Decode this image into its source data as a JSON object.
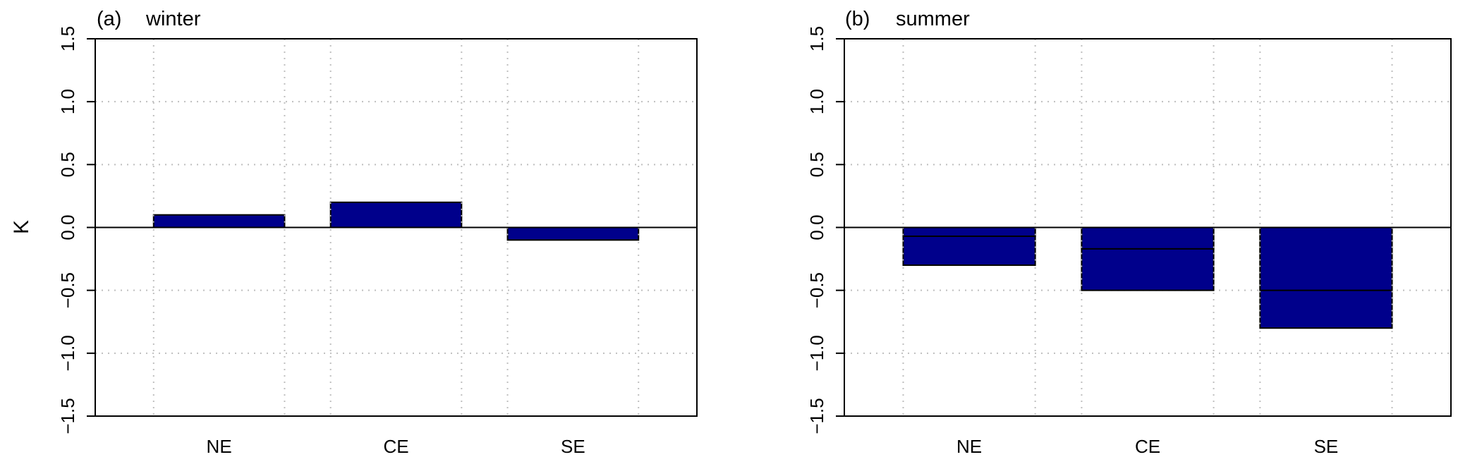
{
  "figure": {
    "ylabel": "K"
  },
  "chart_data": [
    {
      "type": "bar",
      "panel_label": "(a)",
      "title": "winter",
      "categories": [
        "NE",
        "CE",
        "SE"
      ],
      "ylim": [
        -1.5,
        1.5
      ],
      "yticks": [
        "-1.5",
        "-1.0",
        "-0.5",
        "0.0",
        "0.5",
        "1.0",
        "1.5"
      ],
      "ylabel": "K",
      "grid": true,
      "series": [
        {
          "values": [
            0.1,
            0.2,
            -0.1
          ],
          "style": "solid"
        }
      ]
    },
    {
      "type": "bar",
      "panel_label": "(b)",
      "title": "summer",
      "categories": [
        "NE",
        "CE",
        "SE"
      ],
      "ylim": [
        -1.5,
        1.5
      ],
      "yticks": [
        "-1.5",
        "-1.0",
        "-0.5",
        "0.0",
        "0.5",
        "1.0",
        "1.5"
      ],
      "ylabel": "",
      "grid": true,
      "series": [
        {
          "values": [
            -0.3,
            -0.5,
            -0.8
          ],
          "style": "solid"
        },
        {
          "values": [
            -0.07,
            -0.17,
            -0.5
          ],
          "style": "hatched"
        }
      ]
    }
  ],
  "colors": {
    "bar_fill": "#00008b",
    "grid": "#bfbfbf",
    "axis": "#000000"
  }
}
